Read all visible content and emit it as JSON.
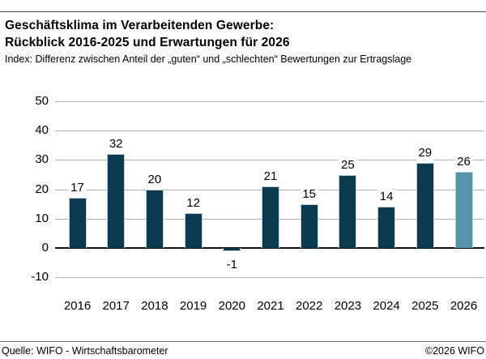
{
  "header": {
    "title_line1": "Geschäftsklima im Verarbeitenden Gewerbe:",
    "title_line2": "Rückblick 2016-2025 und Erwartungen für 2026",
    "subtitle": "Index: Differenz zwischen Anteil der „guten“ und „schlechten“ Bewertungen zur Ertragslage"
  },
  "chart_data": {
    "type": "bar",
    "title": "Geschäftsklima im Verarbeitenden Gewerbe: Rückblick 2016-2025 und Erwartungen für 2026",
    "subtitle": "Index: Differenz zwischen Anteil der „guten“ und „schlechten“ Bewertungen zur Ertragslage",
    "categories": [
      "2016",
      "2017",
      "2018",
      "2019",
      "2020",
      "2021",
      "2022",
      "2023",
      "2024",
      "2025",
      "2026"
    ],
    "values": [
      17,
      32,
      20,
      12,
      -1,
      21,
      15,
      25,
      14,
      29,
      26
    ],
    "xlabel": "",
    "ylabel": "",
    "ylim": [
      -10,
      50
    ],
    "yticks": [
      50,
      40,
      30,
      20,
      10,
      0,
      -10
    ],
    "grid": true,
    "legend": "none",
    "data_labels": true,
    "bar_color": "#0c3a4e",
    "highlight_color": "#5794ab",
    "highlight_category": "2026",
    "gridline_color": "#b0b0b0",
    "zero_line_color": "#111111"
  },
  "footer": {
    "source": "Quelle: WIFO - Wirtschaftsbarometer",
    "copyright": "©2026 WIFO"
  }
}
